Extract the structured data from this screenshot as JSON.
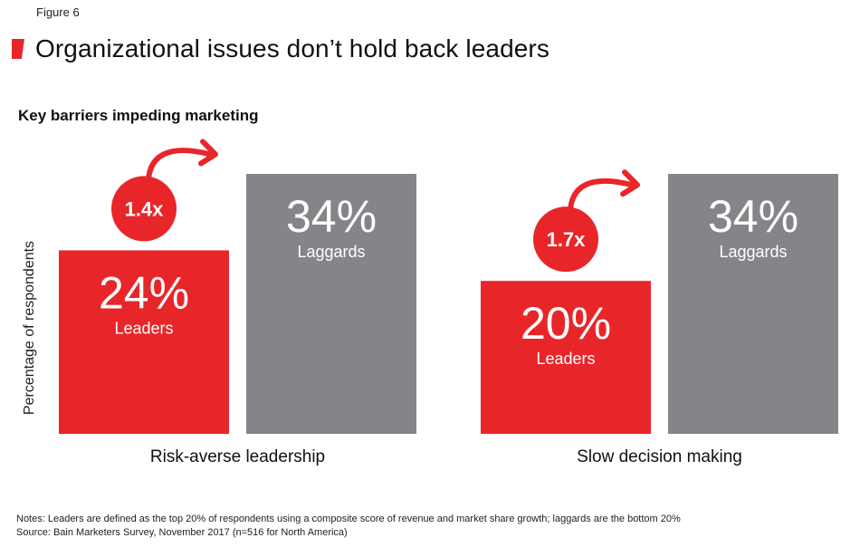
{
  "figure_label": "Figure 6",
  "title": "Organizational issues don’t hold back leaders",
  "notes": "Notes: Leaders are defined as the top 20% of respondents using a composite score of revenue and market share growth; laggards are the bottom 20%",
  "source": "Source: Bain Marketers Survey, November 2017 (n=516 for North America)",
  "colors": {
    "leaders": "#e8262a",
    "laggards": "#858589",
    "accent": "#e8262a"
  },
  "chart_data": {
    "type": "bar",
    "title": "Key barriers impeding marketing",
    "ylabel": "Percentage of respondents",
    "ylim": [
      0,
      34
    ],
    "categories": [
      "Risk-averse leadership",
      "Slow decision making"
    ],
    "series": [
      {
        "name": "Leaders",
        "values": [
          24,
          20
        ]
      },
      {
        "name": "Laggards",
        "values": [
          34,
          34
        ]
      }
    ],
    "value_labels": [
      [
        "24%",
        "34%"
      ],
      [
        "20%",
        "34%"
      ]
    ],
    "multipliers": [
      "1.4x",
      "1.7x"
    ]
  }
}
